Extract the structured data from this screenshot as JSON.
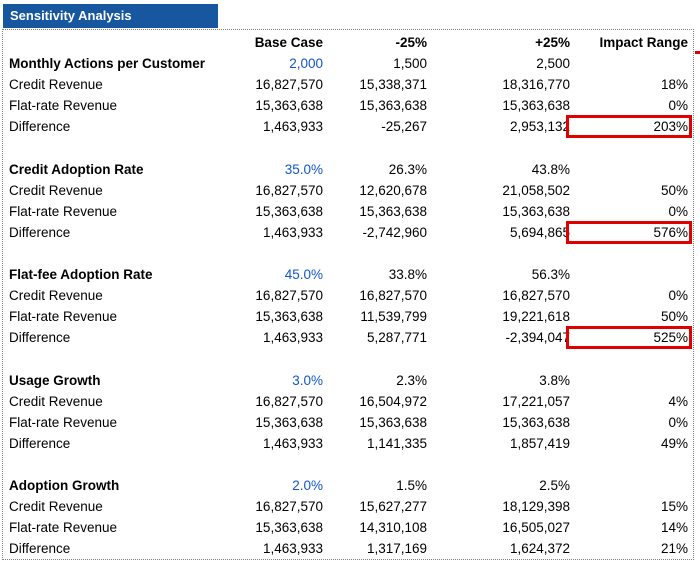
{
  "title": "Sensitivity Analysis",
  "colors": {
    "title_bg": "#16579F",
    "input_blue": "#1155CC",
    "highlight_red": "#E00000"
  },
  "columns": {
    "base": "Base Case",
    "minus": "-25%",
    "plus": "+25%",
    "impact": "Impact Range"
  },
  "sections": [
    {
      "name": "Monthly Actions per Customer",
      "base": "2,000",
      "minus": "1,500",
      "plus": "2,500",
      "rows": [
        {
          "label": "Credit Revenue",
          "base": "16,827,570",
          "minus": "15,338,371",
          "plus": "18,316,770",
          "impact": "18%",
          "highlighted": false
        },
        {
          "label": "Flat-rate Revenue",
          "base": "15,363,638",
          "minus": "15,363,638",
          "plus": "15,363,638",
          "impact": "0%",
          "highlighted": false
        },
        {
          "label": "Difference",
          "base": "1,463,933",
          "minus": "-25,267",
          "plus": "2,953,132",
          "impact": "203%",
          "highlighted": true
        }
      ]
    },
    {
      "name": "Credit Adoption Rate",
      "base": "35.0%",
      "minus": "26.3%",
      "plus": "43.8%",
      "rows": [
        {
          "label": "Credit Revenue",
          "base": "16,827,570",
          "minus": "12,620,678",
          "plus": "21,058,502",
          "impact": "50%",
          "highlighted": false
        },
        {
          "label": "Flat-rate Revenue",
          "base": "15,363,638",
          "minus": "15,363,638",
          "plus": "15,363,638",
          "impact": "0%",
          "highlighted": false
        },
        {
          "label": "Difference",
          "base": "1,463,933",
          "minus": "-2,742,960",
          "plus": "5,694,865",
          "impact": "576%",
          "highlighted": true
        }
      ]
    },
    {
      "name": "Flat-fee Adoption Rate",
      "base": "45.0%",
      "minus": "33.8%",
      "plus": "56.3%",
      "rows": [
        {
          "label": "Credit Revenue",
          "base": "16,827,570",
          "minus": "16,827,570",
          "plus": "16,827,570",
          "impact": "0%",
          "highlighted": false
        },
        {
          "label": "Flat-rate Revenue",
          "base": "15,363,638",
          "minus": "11,539,799",
          "plus": "19,221,618",
          "impact": "50%",
          "highlighted": false
        },
        {
          "label": "Difference",
          "base": "1,463,933",
          "minus": "5,287,771",
          "plus": "-2,394,047",
          "impact": "525%",
          "highlighted": true
        }
      ]
    },
    {
      "name": "Usage Growth",
      "base": "3.0%",
      "minus": "2.3%",
      "plus": "3.8%",
      "rows": [
        {
          "label": "Credit Revenue",
          "base": "16,827,570",
          "minus": "16,504,972",
          "plus": "17,221,057",
          "impact": "4%",
          "highlighted": false
        },
        {
          "label": "Flat-rate Revenue",
          "base": "15,363,638",
          "minus": "15,363,638",
          "plus": "15,363,638",
          "impact": "0%",
          "highlighted": false
        },
        {
          "label": "Difference",
          "base": "1,463,933",
          "minus": "1,141,335",
          "plus": "1,857,419",
          "impact": "49%",
          "highlighted": false
        }
      ]
    },
    {
      "name": "Adoption Growth",
      "base": "2.0%",
      "minus": "1.5%",
      "plus": "2.5%",
      "rows": [
        {
          "label": "Credit Revenue",
          "base": "16,827,570",
          "minus": "15,627,277",
          "plus": "18,129,398",
          "impact": "15%",
          "highlighted": false
        },
        {
          "label": "Flat-rate Revenue",
          "base": "15,363,638",
          "minus": "14,310,108",
          "plus": "16,505,027",
          "impact": "14%",
          "highlighted": false
        },
        {
          "label": "Difference",
          "base": "1,463,933",
          "minus": "1,317,169",
          "plus": "1,624,372",
          "impact": "21%",
          "highlighted": false
        }
      ]
    }
  ]
}
